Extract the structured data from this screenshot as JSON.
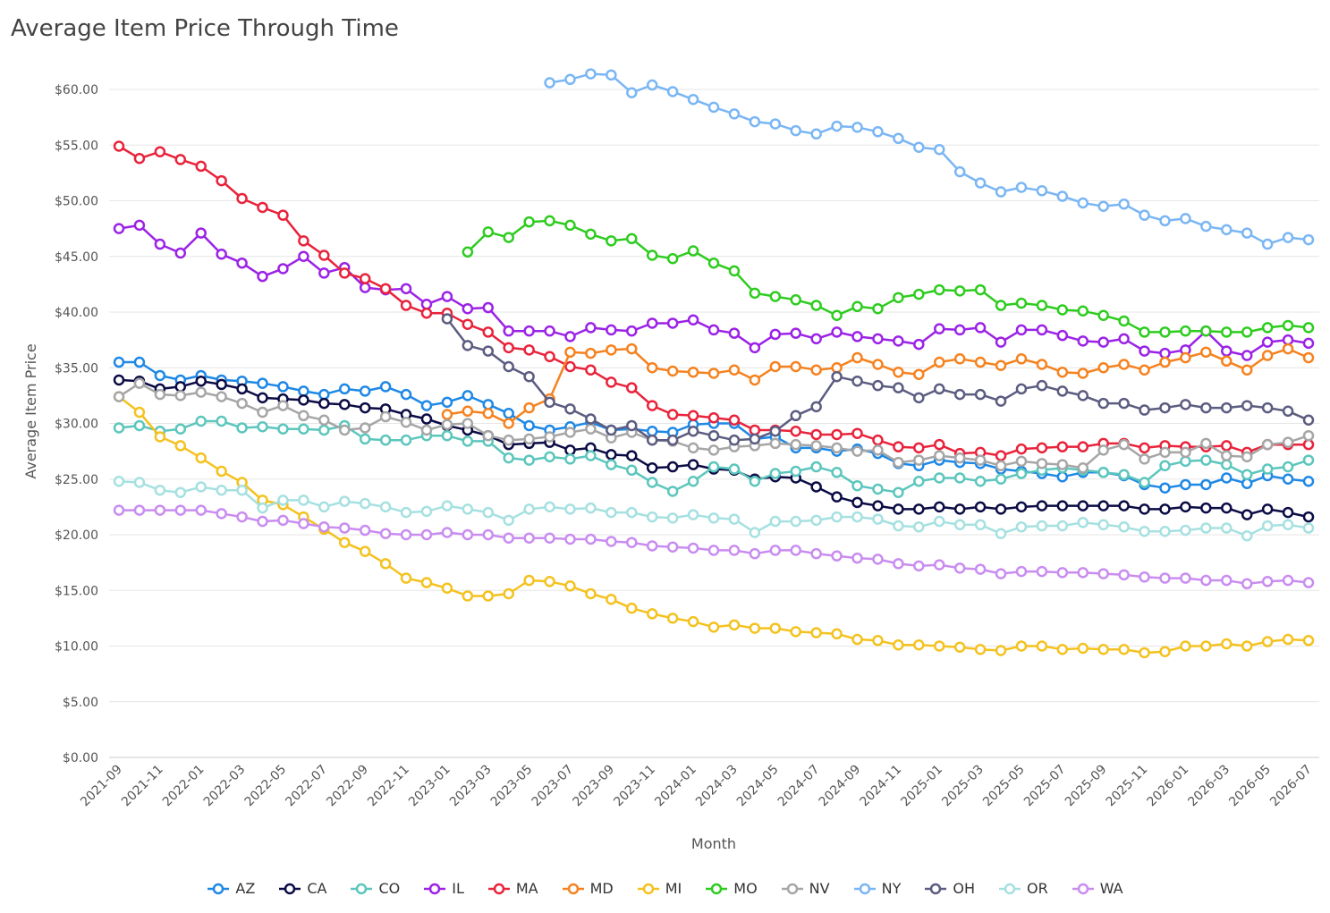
{
  "chart_data": {
    "type": "line",
    "title": "Average Item Price Through Time",
    "x_label": "Month",
    "y_label": "Average Item Price",
    "categories": [
      "2021-09",
      null,
      "2021-11",
      null,
      "2022-01",
      null,
      "2022-03",
      null,
      "2022-05",
      null,
      "2022-07",
      null,
      "2022-09",
      null,
      "2022-11",
      null,
      "2023-01",
      null,
      "2023-03",
      null,
      "2023-05",
      null,
      "2023-07",
      null,
      "2023-09",
      null,
      "2023-11",
      null,
      "2024-01",
      null,
      "2024-03",
      null,
      "2024-05",
      null,
      "2024-07",
      null,
      "2024-09",
      null,
      "2024-11",
      null,
      "2025-01",
      null,
      "2025-03",
      null,
      "2025-05",
      null,
      "2025-07",
      null,
      "2025-09",
      null,
      "2025-11",
      null,
      "2026-01",
      null,
      "2026-03",
      null,
      "2026-05",
      null,
      "2026-07"
    ],
    "ylim": [
      0,
      63
    ],
    "yticks": [
      {
        "value": 0,
        "label": "$0.00"
      },
      {
        "value": 5,
        "label": "$5.00"
      },
      {
        "value": 10,
        "label": "$10.00"
      },
      {
        "value": 15,
        "label": "$15.00"
      },
      {
        "value": 20,
        "label": "$20.00"
      },
      {
        "value": 25,
        "label": "$25.00"
      },
      {
        "value": 30,
        "label": "$30.00"
      },
      {
        "value": 35,
        "label": "$35.00"
      },
      {
        "value": 40,
        "label": "$40.00"
      },
      {
        "value": 45,
        "label": "$45.00"
      },
      {
        "value": 50,
        "label": "$50.00"
      },
      {
        "value": 55,
        "label": "$55.00"
      },
      {
        "value": 60,
        "label": "$60.00"
      }
    ],
    "grid": true,
    "legend": "bottom",
    "series": [
      {
        "name": "AZ",
        "color": "#1e88e5",
        "values": [
          35.5,
          35.5,
          34.3,
          33.9,
          34.3,
          33.9,
          33.8,
          33.6,
          33.3,
          32.9,
          32.6,
          33.1,
          32.9,
          33.3,
          32.6,
          31.6,
          31.9,
          32.5,
          31.7,
          30.9,
          29.8,
          29.4,
          29.7,
          30.1,
          29.4,
          29.5,
          29.3,
          29.2,
          29.9,
          30.0,
          30.0,
          28.6,
          28.8,
          27.8,
          27.8,
          27.5,
          27.7,
          27.3,
          26.4,
          26.2,
          26.7,
          26.5,
          26.4,
          25.9,
          25.7,
          25.5,
          25.2,
          25.6,
          25.6,
          25.3,
          24.5,
          24.2,
          24.5,
          24.5,
          25.1,
          24.6,
          25.3,
          25.0,
          24.8
        ]
      },
      {
        "name": "CA",
        "color": "#0b0b45",
        "values": [
          33.9,
          33.8,
          33.1,
          33.3,
          33.8,
          33.5,
          33.1,
          32.3,
          32.2,
          32.1,
          31.8,
          31.7,
          31.4,
          31.3,
          30.8,
          30.4,
          29.8,
          29.4,
          28.9,
          28.1,
          28.2,
          28.3,
          27.6,
          27.8,
          27.2,
          27.1,
          26.0,
          26.1,
          26.3,
          25.9,
          25.8,
          25.0,
          25.2,
          25.1,
          24.3,
          23.4,
          22.9,
          22.6,
          22.3,
          22.3,
          22.5,
          22.3,
          22.5,
          22.3,
          22.5,
          22.6,
          22.6,
          22.6,
          22.6,
          22.6,
          22.3,
          22.3,
          22.5,
          22.4,
          22.4,
          21.8,
          22.3,
          22.0,
          21.6
        ]
      },
      {
        "name": "CO",
        "color": "#5cc6bd",
        "values": [
          29.6,
          29.8,
          29.3,
          29.5,
          30.2,
          30.2,
          29.6,
          29.7,
          29.5,
          29.5,
          29.4,
          29.8,
          28.6,
          28.5,
          28.5,
          28.9,
          28.9,
          28.4,
          28.4,
          26.9,
          26.7,
          27.0,
          26.8,
          27.1,
          26.3,
          25.8,
          24.7,
          23.9,
          24.8,
          26.1,
          25.9,
          24.8,
          25.5,
          25.7,
          26.1,
          25.6,
          24.4,
          24.1,
          23.8,
          24.8,
          25.1,
          25.1,
          24.8,
          25.0,
          25.5,
          25.8,
          26.0,
          25.8,
          25.6,
          25.4,
          24.7,
          26.2,
          26.6,
          26.7,
          26.3,
          25.4,
          25.9,
          26.1,
          26.7
        ]
      },
      {
        "name": "IL",
        "color": "#9b22e6",
        "values": [
          47.5,
          47.8,
          46.1,
          45.3,
          47.1,
          45.2,
          44.4,
          43.2,
          43.9,
          45.0,
          43.5,
          44.0,
          42.2,
          42.0,
          42.1,
          40.7,
          41.4,
          40.3,
          40.4,
          38.3,
          38.3,
          38.3,
          37.8,
          38.6,
          38.4,
          38.3,
          39.0,
          39.0,
          39.3,
          38.4,
          38.1,
          36.8,
          38.0,
          38.1,
          37.6,
          38.2,
          37.8,
          37.6,
          37.4,
          37.1,
          38.5,
          38.4,
          38.6,
          37.3,
          38.4,
          38.4,
          37.9,
          37.4,
          37.3,
          37.6,
          36.5,
          36.3,
          36.6,
          38.3,
          36.5,
          36.1,
          37.3,
          37.5,
          37.2
        ]
      },
      {
        "name": "MA",
        "color": "#e8233b",
        "values": [
          54.9,
          53.8,
          54.4,
          53.7,
          53.1,
          51.8,
          50.2,
          49.4,
          48.7,
          46.4,
          45.1,
          43.5,
          43.0,
          42.1,
          40.6,
          39.9,
          39.9,
          38.9,
          38.2,
          36.8,
          36.6,
          36.0,
          35.1,
          34.8,
          33.7,
          33.2,
          31.6,
          30.8,
          30.7,
          30.5,
          30.3,
          29.4,
          29.4,
          29.3,
          29.0,
          29.0,
          29.1,
          28.5,
          27.9,
          27.8,
          28.1,
          27.3,
          27.4,
          27.1,
          27.7,
          27.8,
          27.9,
          27.9,
          28.2,
          28.2,
          27.8,
          28.0,
          27.9,
          27.9,
          28.0,
          27.4,
          28.1,
          28.1,
          28.1
        ]
      },
      {
        "name": "MD",
        "color": "#f5821f",
        "values": [
          null,
          null,
          null,
          null,
          null,
          null,
          null,
          null,
          null,
          null,
          null,
          null,
          null,
          null,
          null,
          null,
          30.8,
          31.1,
          30.9,
          30.0,
          31.4,
          32.2,
          36.4,
          36.3,
          36.6,
          36.7,
          35.0,
          34.7,
          34.6,
          34.5,
          34.8,
          33.9,
          35.1,
          35.1,
          34.8,
          35.0,
          35.9,
          35.3,
          34.6,
          34.4,
          35.5,
          35.8,
          35.5,
          35.2,
          35.8,
          35.3,
          34.6,
          34.5,
          35.0,
          35.3,
          34.8,
          35.5,
          35.9,
          36.4,
          35.6,
          34.8,
          36.1,
          36.7,
          35.9
        ]
      },
      {
        "name": "MI",
        "color": "#f4c21f",
        "values": [
          32.4,
          31.0,
          28.8,
          28.0,
          26.9,
          25.7,
          24.7,
          23.1,
          22.7,
          21.6,
          20.5,
          19.3,
          18.5,
          17.4,
          16.1,
          15.7,
          15.2,
          14.5,
          14.5,
          14.7,
          15.9,
          15.8,
          15.4,
          14.7,
          14.2,
          13.4,
          12.9,
          12.5,
          12.2,
          11.7,
          11.9,
          11.6,
          11.6,
          11.3,
          11.2,
          11.1,
          10.6,
          10.5,
          10.1,
          10.1,
          10.0,
          9.9,
          9.7,
          9.6,
          10.0,
          10.0,
          9.7,
          9.8,
          9.7,
          9.7,
          9.4,
          9.5,
          10.0,
          10.0,
          10.2,
          10.0,
          10.4,
          10.6,
          10.5
        ]
      },
      {
        "name": "MO",
        "color": "#2ecc1f",
        "values": [
          null,
          null,
          null,
          null,
          null,
          null,
          null,
          null,
          null,
          null,
          null,
          null,
          null,
          null,
          null,
          null,
          null,
          45.4,
          47.2,
          46.7,
          48.1,
          48.2,
          47.8,
          47.0,
          46.4,
          46.6,
          45.1,
          44.8,
          45.5,
          44.4,
          43.7,
          41.7,
          41.4,
          41.1,
          40.6,
          39.7,
          40.5,
          40.3,
          41.3,
          41.6,
          42.0,
          41.9,
          42.0,
          40.6,
          40.8,
          40.6,
          40.2,
          40.1,
          39.7,
          39.2,
          38.2,
          38.2,
          38.3,
          38.3,
          38.2,
          38.2,
          38.6,
          38.8,
          38.6
        ]
      },
      {
        "name": "NV",
        "color": "#a6a6a6",
        "values": [
          32.4,
          33.6,
          32.6,
          32.5,
          32.8,
          32.4,
          31.8,
          31.0,
          31.6,
          30.7,
          30.3,
          29.4,
          29.6,
          30.6,
          30.1,
          29.4,
          29.9,
          30.0,
          28.9,
          28.5,
          28.6,
          28.8,
          29.2,
          29.5,
          28.7,
          29.2,
          28.5,
          28.4,
          27.8,
          27.6,
          27.9,
          28.0,
          28.2,
          28.1,
          28.0,
          27.8,
          27.5,
          27.6,
          26.5,
          26.7,
          27.1,
          26.9,
          26.7,
          26.2,
          26.6,
          26.4,
          26.3,
          26.0,
          27.6,
          28.1,
          26.8,
          27.4,
          27.4,
          28.2,
          27.1,
          27.0,
          28.1,
          28.3,
          28.9
        ]
      },
      {
        "name": "NY",
        "color": "#7ab6f4",
        "values": [
          null,
          null,
          null,
          null,
          null,
          null,
          null,
          null,
          null,
          null,
          null,
          null,
          null,
          null,
          null,
          null,
          null,
          null,
          null,
          null,
          null,
          60.6,
          60.9,
          61.4,
          61.3,
          59.7,
          60.4,
          59.8,
          59.1,
          58.4,
          57.8,
          57.1,
          56.9,
          56.3,
          56.0,
          56.7,
          56.6,
          56.2,
          55.6,
          54.8,
          54.6,
          52.6,
          51.6,
          50.8,
          51.2,
          50.9,
          50.4,
          49.8,
          49.5,
          49.7,
          48.7,
          48.2,
          48.4,
          47.7,
          47.4,
          47.1,
          46.1,
          46.7,
          46.5
        ]
      },
      {
        "name": "OH",
        "color": "#5b5c80",
        "values": [
          null,
          null,
          null,
          null,
          null,
          null,
          null,
          null,
          null,
          null,
          null,
          null,
          null,
          null,
          null,
          null,
          39.4,
          37.0,
          36.5,
          35.1,
          34.2,
          31.9,
          31.3,
          30.4,
          29.4,
          29.8,
          28.5,
          28.5,
          29.3,
          28.9,
          28.5,
          28.6,
          29.3,
          30.7,
          31.5,
          34.2,
          33.8,
          33.4,
          33.2,
          32.3,
          33.1,
          32.6,
          32.6,
          32.0,
          33.1,
          33.4,
          32.9,
          32.5,
          31.8,
          31.8,
          31.2,
          31.4,
          31.7,
          31.4,
          31.4,
          31.6,
          31.4,
          31.1,
          30.3
        ]
      },
      {
        "name": "OR",
        "color": "#a6e0e0",
        "values": [
          24.8,
          24.7,
          24.0,
          23.8,
          24.3,
          24.0,
          24.0,
          22.4,
          23.1,
          23.1,
          22.5,
          23.0,
          22.8,
          22.5,
          22.0,
          22.1,
          22.6,
          22.3,
          22.0,
          21.3,
          22.3,
          22.5,
          22.3,
          22.4,
          22.0,
          22.0,
          21.6,
          21.5,
          21.8,
          21.5,
          21.4,
          20.2,
          21.2,
          21.2,
          21.3,
          21.6,
          21.6,
          21.4,
          20.8,
          20.7,
          21.2,
          20.9,
          20.9,
          20.1,
          20.7,
          20.8,
          20.8,
          21.1,
          20.9,
          20.7,
          20.3,
          20.3,
          20.4,
          20.6,
          20.6,
          19.9,
          20.8,
          20.9,
          20.6
        ]
      },
      {
        "name": "WA",
        "color": "#c98cf0",
        "values": [
          22.2,
          22.2,
          22.2,
          22.2,
          22.2,
          21.9,
          21.6,
          21.2,
          21.3,
          21.0,
          20.7,
          20.6,
          20.4,
          20.1,
          20.0,
          20.0,
          20.2,
          20.0,
          20.0,
          19.7,
          19.7,
          19.7,
          19.6,
          19.6,
          19.4,
          19.3,
          19.0,
          18.9,
          18.8,
          18.6,
          18.6,
          18.3,
          18.6,
          18.6,
          18.3,
          18.1,
          17.9,
          17.8,
          17.4,
          17.2,
          17.3,
          17.0,
          16.9,
          16.5,
          16.7,
          16.7,
          16.6,
          16.6,
          16.5,
          16.4,
          16.2,
          16.1,
          16.1,
          15.9,
          15.9,
          15.6,
          15.8,
          15.9,
          15.7
        ]
      }
    ]
  }
}
